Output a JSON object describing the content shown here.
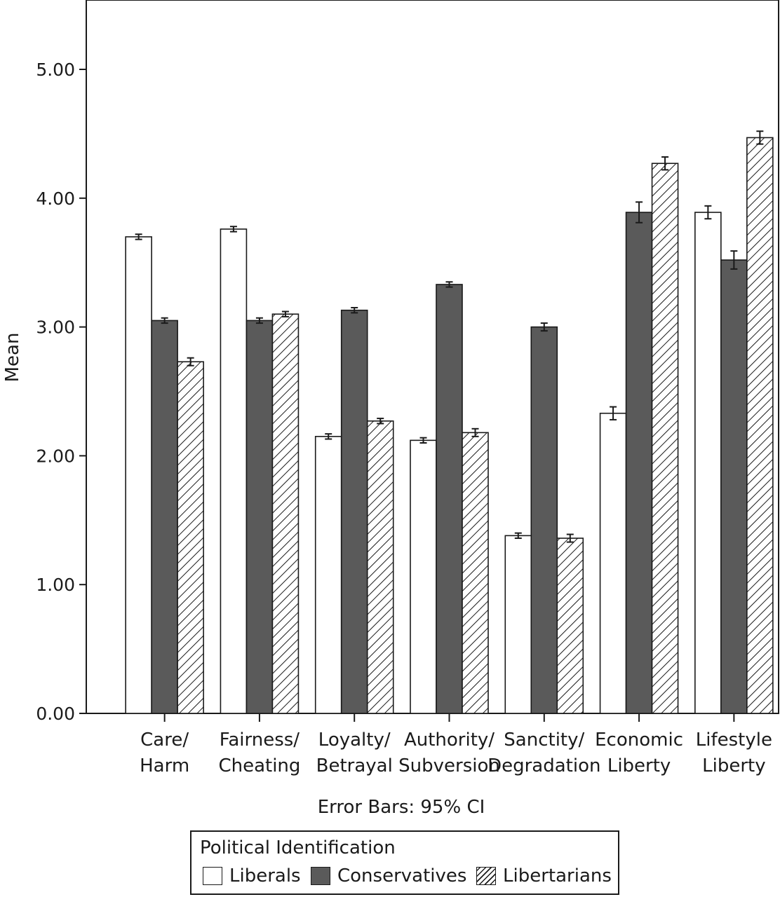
{
  "chart_data": {
    "type": "bar",
    "title": "",
    "ylabel": "Mean",
    "xlabel": "Error Bars: 95% CI",
    "ylim": [
      0,
      5.5
    ],
    "yticks": [
      "0.00",
      "1.00",
      "2.00",
      "3.00",
      "4.00",
      "5.00"
    ],
    "categories": [
      [
        "Care/",
        "Harm"
      ],
      [
        "Fairness/",
        "Cheating"
      ],
      [
        "Loyalty/",
        "Betrayal"
      ],
      [
        "Authority/",
        "Subversion"
      ],
      [
        "Sanctity/",
        "Degradation"
      ],
      [
        "Economic",
        "Liberty"
      ],
      [
        "Lifestyle",
        "Liberty"
      ]
    ],
    "series": [
      {
        "name": "Liberals",
        "fill": "#ffffff",
        "values": [
          3.7,
          3.76,
          2.15,
          2.12,
          1.38,
          2.33,
          3.89
        ],
        "errors": [
          0.02,
          0.02,
          0.02,
          0.02,
          0.02,
          0.05,
          0.05
        ]
      },
      {
        "name": "Conservatives",
        "fill": "#5a5a5a",
        "values": [
          3.05,
          3.05,
          3.13,
          3.33,
          3.0,
          3.89,
          3.52
        ],
        "errors": [
          0.02,
          0.02,
          0.02,
          0.02,
          0.03,
          0.08,
          0.07
        ]
      },
      {
        "name": "Libertarians",
        "fill": "hatch",
        "values": [
          2.73,
          3.1,
          2.27,
          2.18,
          1.36,
          4.27,
          4.47
        ],
        "errors": [
          0.03,
          0.02,
          0.02,
          0.03,
          0.03,
          0.05,
          0.05
        ]
      }
    ]
  },
  "legend": {
    "title": "Political Identification",
    "items": [
      "Liberals",
      "Conservatives",
      "Libertarians"
    ]
  }
}
